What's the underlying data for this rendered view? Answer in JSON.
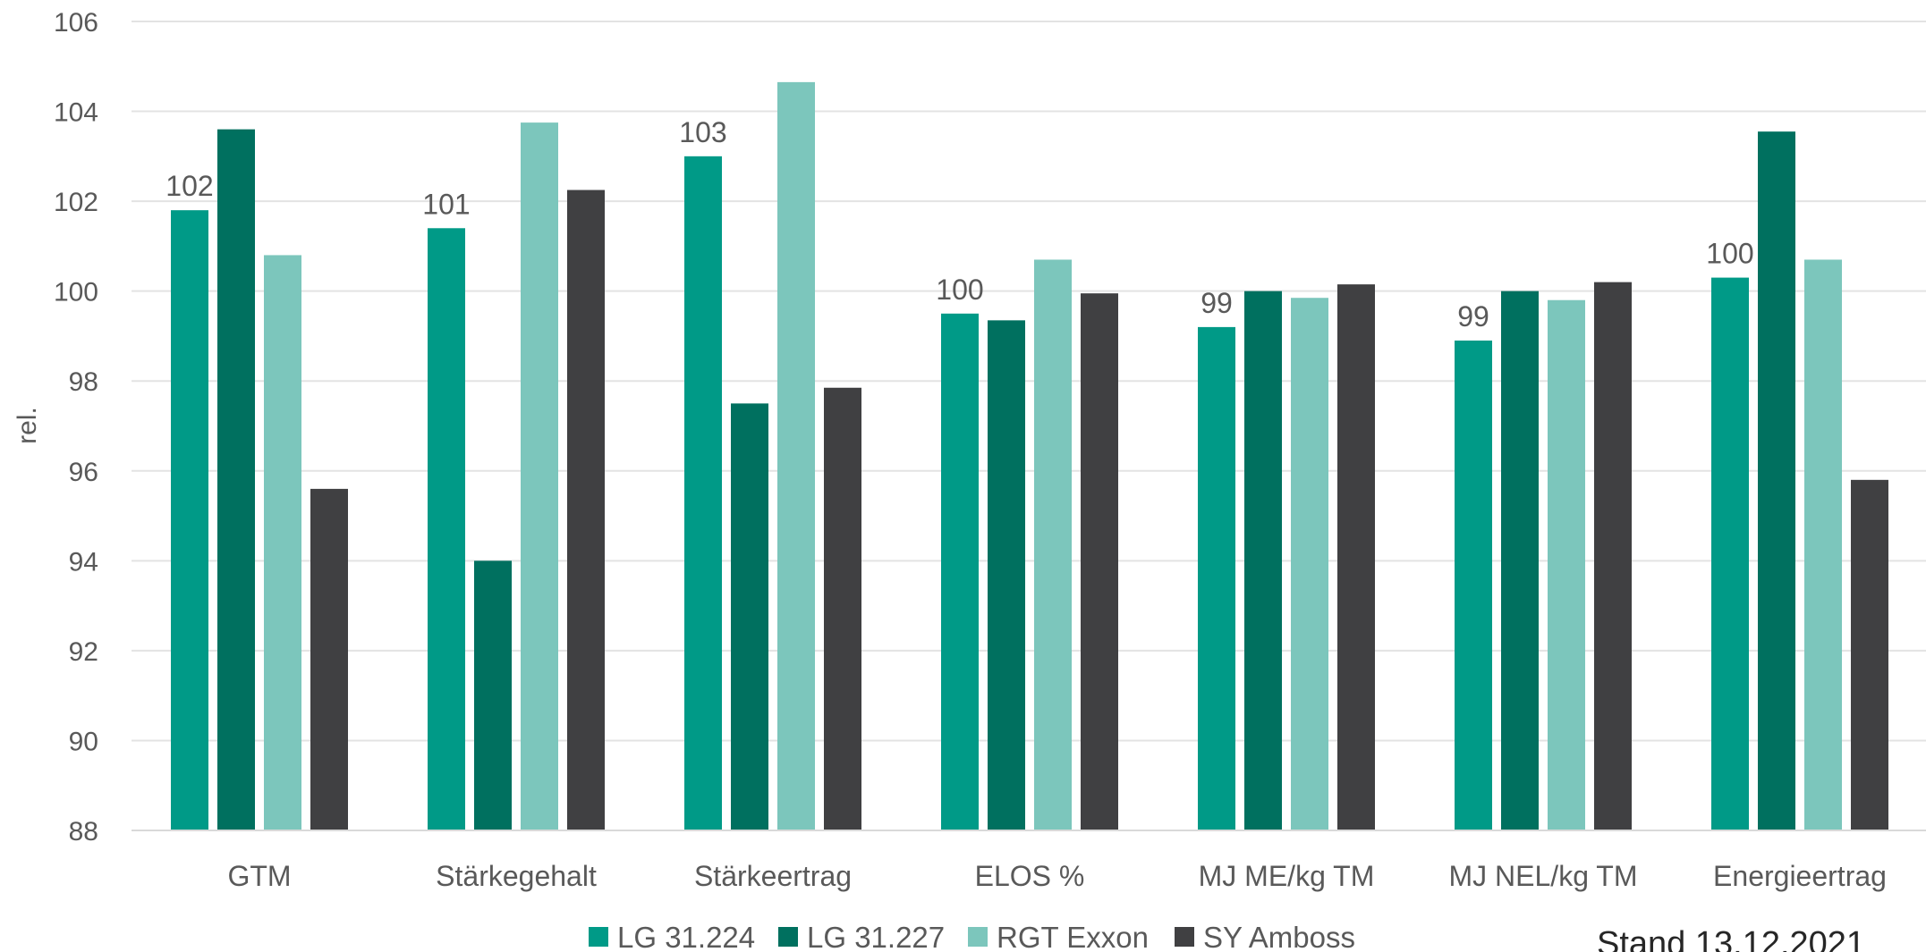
{
  "chart_data": {
    "type": "bar",
    "categories": [
      "GTM",
      "Stärkegehalt",
      "Stärkeertrag",
      "ELOS %",
      "MJ ME/kg TM",
      "MJ NEL/kg TM",
      "Energieertrag"
    ],
    "series": [
      {
        "name": "LG 31.224",
        "color": "#009a87",
        "values": [
          101.8,
          101.4,
          103.0,
          99.5,
          99.2,
          98.9,
          100.3
        ],
        "data_labels": [
          "102",
          "101",
          "103",
          "100",
          "99",
          "99",
          "100"
        ]
      },
      {
        "name": "LG 31.227",
        "color": "#00705f",
        "values": [
          103.6,
          94.0,
          97.5,
          99.35,
          100.0,
          100.0,
          103.55
        ]
      },
      {
        "name": "RGT Exxon",
        "color": "#7cc6bc",
        "values": [
          100.8,
          103.75,
          104.65,
          100.7,
          99.85,
          99.8,
          100.7
        ]
      },
      {
        "name": "SY Amboss",
        "color": "#404042",
        "values": [
          95.6,
          102.25,
          97.85,
          99.95,
          100.15,
          100.2,
          95.8
        ]
      }
    ],
    "ylabel": "rel.",
    "ylim": [
      88,
      106
    ],
    "yticks": [
      88,
      90,
      92,
      94,
      96,
      98,
      100,
      102,
      104,
      106
    ],
    "grid": true,
    "legend_position": "bottom-center",
    "footnote": "Stand 13.12.2021"
  }
}
